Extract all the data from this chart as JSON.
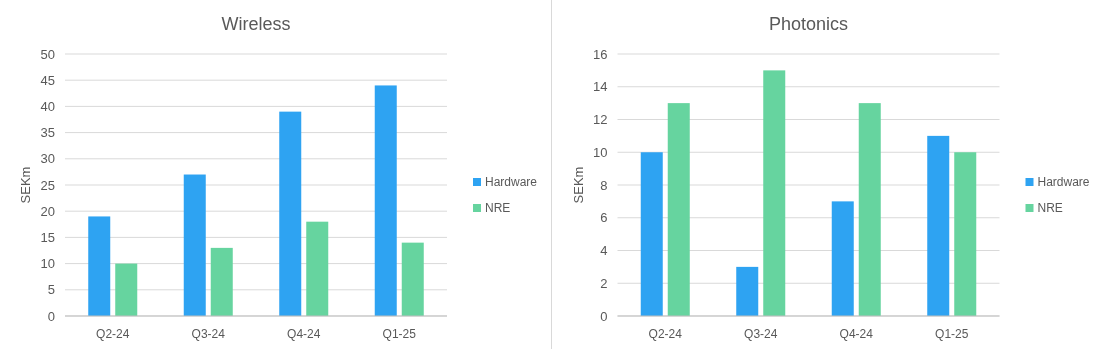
{
  "chart_data": [
    {
      "type": "bar",
      "title": "Wireless",
      "ylabel": "SEKm",
      "categories": [
        "Q2-24",
        "Q3-24",
        "Q4-24",
        "Q1-25"
      ],
      "series": [
        {
          "name": "Hardware",
          "color": "#2ea3f2",
          "values": [
            19,
            27,
            39,
            44
          ]
        },
        {
          "name": "NRE",
          "color": "#66d49f",
          "values": [
            10,
            13,
            18,
            14
          ]
        }
      ],
      "ylim": [
        0,
        50
      ],
      "yticks": [
        0,
        5,
        10,
        15,
        20,
        25,
        30,
        35,
        40,
        45,
        50
      ],
      "grid": "y",
      "legend": "right"
    },
    {
      "type": "bar",
      "title": "Photonics",
      "ylabel": "SEKm",
      "categories": [
        "Q2-24",
        "Q3-24",
        "Q4-24",
        "Q1-25"
      ],
      "series": [
        {
          "name": "Hardware",
          "color": "#2ea3f2",
          "values": [
            10,
            3,
            7,
            11
          ]
        },
        {
          "name": "NRE",
          "color": "#66d49f",
          "values": [
            13,
            15,
            13,
            10
          ]
        }
      ],
      "ylim": [
        0,
        16
      ],
      "yticks": [
        0,
        2,
        4,
        6,
        8,
        10,
        12,
        14,
        16
      ],
      "grid": "y",
      "legend": "right"
    }
  ]
}
